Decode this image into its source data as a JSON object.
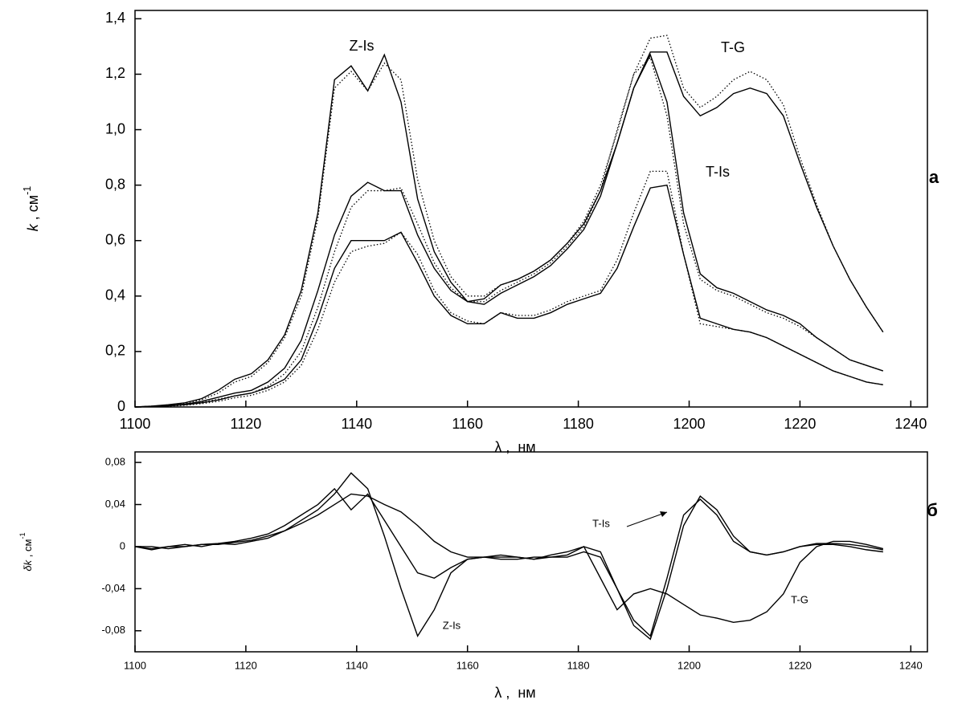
{
  "chart_data": [
    {
      "type": "line",
      "panel_label": "а",
      "x_label": "λ ,  нм",
      "y_label": "k",
      "y_label_unit": " , см",
      "y_label_exponent": "-1",
      "annotations": [
        "Z-Is",
        "T-G",
        "T-Is"
      ],
      "xlim": [
        1100,
        1243
      ],
      "ylim": [
        0,
        1.43
      ],
      "xticks": [
        1100,
        1120,
        1140,
        1160,
        1180,
        1200,
        1220,
        1240
      ],
      "yticks": [
        0,
        {
          "value": 0.2,
          "label": "0,2"
        },
        {
          "value": 0.4,
          "label": "0,4"
        },
        {
          "value": 0.6,
          "label": "0,6"
        },
        {
          "value": 0.8,
          "label": "0,8"
        },
        {
          "value": 1.0,
          "label": "1,0"
        },
        {
          "value": 1.2,
          "label": "1,2"
        },
        {
          "value": 1.4,
          "label": "1,4"
        }
      ],
      "x": [
        1100,
        1103,
        1106,
        1109,
        1112,
        1115,
        1118,
        1121,
        1124,
        1127,
        1130,
        1133,
        1136,
        1139,
        1142,
        1145,
        1148,
        1151,
        1154,
        1157,
        1160,
        1163,
        1166,
        1169,
        1172,
        1175,
        1178,
        1181,
        1184,
        1187,
        1190,
        1193,
        1196,
        1199,
        1202,
        1205,
        1208,
        1211,
        1214,
        1217,
        1220,
        1223,
        1226,
        1229,
        1232,
        1235
      ],
      "series": [
        {
          "color": "#000000",
          "dash": "solid",
          "values": [
            0,
            0.003,
            0.008,
            0.015,
            0.03,
            0.06,
            0.1,
            0.12,
            0.17,
            0.26,
            0.42,
            0.7,
            1.18,
            1.23,
            1.14,
            1.27,
            1.1,
            0.75,
            0.56,
            0.45,
            0.38,
            0.39,
            0.44,
            0.46,
            0.49,
            0.53,
            0.59,
            0.66,
            0.78,
            0.95,
            1.15,
            1.27,
            1.1,
            0.7,
            0.48,
            0.43,
            0.41,
            0.38,
            0.35,
            0.33,
            0.3,
            0.25,
            0.21,
            0.17,
            0.15,
            0.13
          ]
        },
        {
          "color": "#000000",
          "dash": "dotted",
          "values": [
            0,
            0.003,
            0.007,
            0.013,
            0.026,
            0.05,
            0.09,
            0.11,
            0.16,
            0.25,
            0.4,
            0.68,
            1.15,
            1.21,
            1.14,
            1.24,
            1.18,
            0.82,
            0.6,
            0.47,
            0.4,
            0.4,
            0.44,
            0.46,
            0.49,
            0.53,
            0.59,
            0.67,
            0.8,
            0.99,
            1.2,
            1.26,
            1.05,
            0.66,
            0.46,
            0.42,
            0.4,
            0.37,
            0.34,
            0.32,
            0.29,
            0.25,
            0.21,
            0.17,
            0.15,
            0.13
          ]
        },
        {
          "color": "#000000",
          "dash": "solid",
          "values": [
            0,
            0.002,
            0.005,
            0.01,
            0.02,
            0.035,
            0.05,
            0.06,
            0.09,
            0.14,
            0.24,
            0.42,
            0.62,
            0.76,
            0.81,
            0.78,
            0.78,
            0.62,
            0.5,
            0.42,
            0.38,
            0.37,
            0.41,
            0.44,
            0.47,
            0.51,
            0.57,
            0.64,
            0.76,
            0.95,
            1.15,
            1.28,
            1.28,
            1.12,
            1.05,
            1.08,
            1.13,
            1.15,
            1.13,
            1.05,
            0.88,
            0.72,
            0.58,
            0.46,
            0.36,
            0.27
          ]
        },
        {
          "color": "#000000",
          "dash": "dotted",
          "values": [
            0,
            0.002,
            0.004,
            0.008,
            0.016,
            0.028,
            0.04,
            0.05,
            0.075,
            0.12,
            0.2,
            0.36,
            0.56,
            0.72,
            0.78,
            0.78,
            0.79,
            0.66,
            0.52,
            0.43,
            0.38,
            0.38,
            0.42,
            0.45,
            0.48,
            0.52,
            0.58,
            0.65,
            0.78,
            1.0,
            1.2,
            1.33,
            1.34,
            1.15,
            1.08,
            1.12,
            1.18,
            1.21,
            1.18,
            1.09,
            0.9,
            0.73,
            0.58,
            0.46,
            0.36,
            0.27
          ]
        },
        {
          "color": "#000000",
          "dash": "solid",
          "values": [
            0,
            0.002,
            0.004,
            0.008,
            0.015,
            0.025,
            0.04,
            0.05,
            0.07,
            0.1,
            0.17,
            0.32,
            0.5,
            0.6,
            0.6,
            0.6,
            0.63,
            0.52,
            0.4,
            0.33,
            0.3,
            0.3,
            0.34,
            0.32,
            0.32,
            0.34,
            0.37,
            0.39,
            0.41,
            0.5,
            0.65,
            0.79,
            0.8,
            0.55,
            0.32,
            0.3,
            0.28,
            0.27,
            0.25,
            0.22,
            0.19,
            0.16,
            0.13,
            0.11,
            0.09,
            0.08
          ]
        },
        {
          "color": "#000000",
          "dash": "dotted",
          "values": [
            0,
            0.002,
            0.003,
            0.006,
            0.012,
            0.02,
            0.033,
            0.042,
            0.06,
            0.09,
            0.15,
            0.28,
            0.45,
            0.56,
            0.58,
            0.59,
            0.63,
            0.55,
            0.42,
            0.34,
            0.31,
            0.3,
            0.34,
            0.33,
            0.33,
            0.35,
            0.38,
            0.4,
            0.42,
            0.53,
            0.7,
            0.85,
            0.85,
            0.55,
            0.3,
            0.29,
            0.28,
            0.27,
            0.25,
            0.22,
            0.19,
            0.16,
            0.13,
            0.11,
            0.09,
            0.08
          ]
        }
      ]
    },
    {
      "type": "line",
      "panel_label": "б",
      "x_label": "λ ,  нм",
      "y_label": "δk",
      "y_label_unit": " , см",
      "y_label_exponent": "-1",
      "annotations": [
        "T-Is",
        "Z-Is",
        "T-G"
      ],
      "xlim": [
        1100,
        1243
      ],
      "ylim": [
        -0.1,
        0.09
      ],
      "xticks": [
        1100,
        1120,
        1140,
        1160,
        1180,
        1200,
        1220,
        1240
      ],
      "yticks": [
        {
          "value": -0.08,
          "label": "-0,08"
        },
        {
          "value": -0.04,
          "label": "-0,04"
        },
        0,
        {
          "value": 0.04,
          "label": "0,04"
        },
        {
          "value": 0.08,
          "label": "0,08"
        }
      ],
      "x": [
        1100,
        1103,
        1106,
        1109,
        1112,
        1115,
        1118,
        1121,
        1124,
        1127,
        1130,
        1133,
        1136,
        1139,
        1142,
        1145,
        1148,
        1151,
        1154,
        1157,
        1160,
        1163,
        1166,
        1169,
        1172,
        1175,
        1178,
        1181,
        1184,
        1187,
        1190,
        1193,
        1196,
        1199,
        1202,
        1205,
        1208,
        1211,
        1214,
        1217,
        1220,
        1223,
        1226,
        1229,
        1232,
        1235
      ],
      "series": [
        {
          "color": "#000000",
          "dash": "solid",
          "values": [
            0,
            -0.003,
            0,
            0.002,
            0,
            0.003,
            0.002,
            0.005,
            0.008,
            0.015,
            0.025,
            0.035,
            0.05,
            0.07,
            0.055,
            0.01,
            -0.04,
            -0.085,
            -0.06,
            -0.025,
            -0.012,
            -0.01,
            -0.01,
            -0.01,
            -0.012,
            -0.01,
            -0.01,
            -0.005,
            -0.01,
            -0.04,
            -0.07,
            -0.085,
            -0.03,
            0.03,
            0.045,
            0.03,
            0.005,
            -0.005,
            -0.008,
            -0.005,
            0,
            0.003,
            0.003,
            0.002,
            0,
            -0.003
          ]
        },
        {
          "color": "#000000",
          "dash": "solid",
          "values": [
            0,
            0,
            -0.002,
            0,
            0.002,
            0.002,
            0.004,
            0.006,
            0.01,
            0.015,
            0.022,
            0.03,
            0.04,
            0.05,
            0.048,
            0.04,
            0.033,
            0.02,
            0.005,
            -0.005,
            -0.01,
            -0.01,
            -0.012,
            -0.012,
            -0.01,
            -0.01,
            -0.008,
            0,
            -0.005,
            -0.04,
            -0.075,
            -0.088,
            -0.04,
            0.02,
            0.048,
            0.035,
            0.01,
            -0.005,
            -0.008,
            -0.005,
            0,
            0.002,
            0.002,
            0,
            -0.003,
            -0.005
          ]
        },
        {
          "color": "#000000",
          "dash": "solid",
          "values": [
            0,
            -0.002,
            0,
            0,
            0.002,
            0.003,
            0.005,
            0.008,
            0.012,
            0.02,
            0.03,
            0.04,
            0.055,
            0.035,
            0.05,
            0.025,
            0.0,
            -0.025,
            -0.03,
            -0.02,
            -0.012,
            -0.01,
            -0.008,
            -0.01,
            -0.012,
            -0.008,
            -0.005,
            0,
            -0.03,
            -0.06,
            -0.045,
            -0.04,
            -0.045,
            -0.055,
            -0.065,
            -0.068,
            -0.072,
            -0.07,
            -0.062,
            -0.045,
            -0.015,
            0.0,
            0.005,
            0.005,
            0.002,
            -0.002
          ]
        }
      ]
    }
  ]
}
